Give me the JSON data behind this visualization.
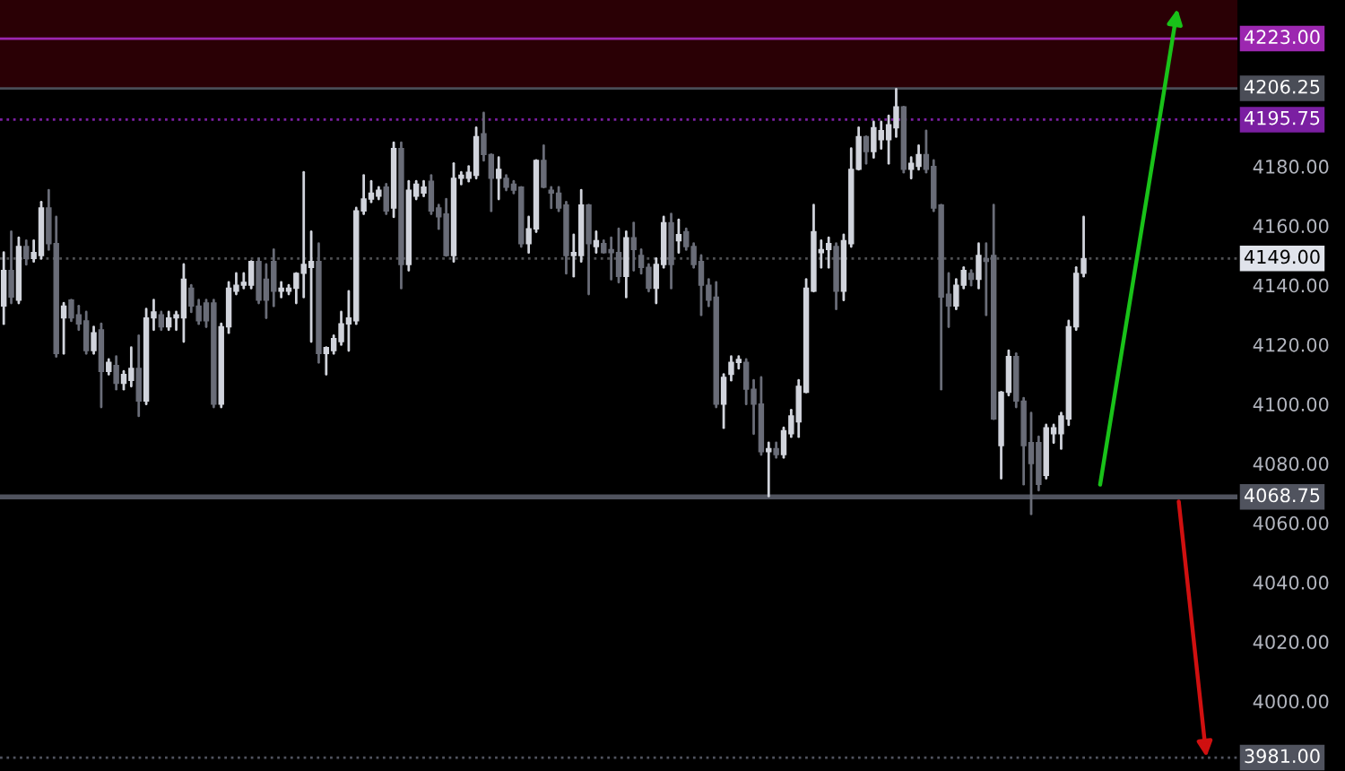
{
  "chart_data": {
    "type": "candlestick",
    "categories": [
      null,
      null,
      null,
      null,
      null,
      null,
      null,
      null,
      null,
      null,
      null,
      null,
      null,
      null,
      null,
      null,
      null,
      null,
      null,
      null,
      null,
      null,
      null,
      null,
      null,
      null,
      null,
      null,
      null,
      null,
      null,
      null,
      null,
      null,
      null,
      null,
      null,
      null,
      null,
      null,
      null,
      null,
      null,
      null,
      null,
      null,
      null,
      null,
      null,
      null,
      null,
      null,
      null,
      null,
      null,
      null,
      null,
      null,
      null,
      null,
      null,
      null,
      null,
      null,
      null,
      null,
      null,
      null,
      null,
      null,
      null,
      null,
      null,
      null,
      null,
      null,
      null,
      null,
      null,
      null,
      null,
      null,
      null,
      null,
      null,
      null,
      null,
      null,
      null,
      null,
      null,
      null,
      null,
      null,
      null,
      null,
      null,
      null,
      null,
      null,
      null,
      null,
      null,
      null,
      null,
      null,
      null,
      null,
      null,
      null,
      null,
      null,
      null,
      null,
      null,
      null,
      null,
      null,
      null,
      null,
      null,
      null,
      null,
      null,
      null,
      null,
      null,
      null,
      null,
      null,
      null,
      null,
      null,
      null,
      null,
      null,
      null,
      null,
      null,
      null,
      null,
      null,
      null,
      null,
      null,
      null,
      null,
      null,
      null,
      null,
      null,
      null,
      null,
      null,
      null,
      null,
      null,
      null,
      null,
      null,
      null,
      null,
      null,
      null,
      null
    ],
    "ohlc": [
      [
        4133,
        4151,
        4127,
        4145
      ],
      [
        4145,
        4158,
        4134,
        4136
      ],
      [
        4135,
        4156,
        4134,
        4153
      ],
      [
        4153,
        4155,
        4147,
        4149
      ],
      [
        4149,
        4155,
        4148,
        4151
      ],
      [
        4150,
        4168,
        4149,
        4166
      ],
      [
        4166,
        4172,
        4152,
        4154
      ],
      [
        4154,
        4163,
        4116,
        4117
      ],
      [
        4129,
        4134,
        4117,
        4133
      ],
      [
        4135,
        4135,
        4128,
        4129
      ],
      [
        4130,
        4133,
        4125,
        4127
      ],
      [
        4128,
        4131,
        4117,
        4118
      ],
      [
        4118,
        4126,
        4117,
        4124
      ],
      [
        4125,
        4127,
        4099,
        4111
      ],
      [
        4111,
        4115,
        4110,
        4114
      ],
      [
        4113,
        4116,
        4105,
        4107
      ],
      [
        4107,
        4111,
        4105,
        4110
      ],
      [
        4108,
        4119,
        4106,
        4112
      ],
      [
        4112,
        4123,
        4096,
        4101
      ],
      [
        4101,
        4132,
        4100,
        4129
      ],
      [
        4129,
        4135,
        4125,
        4131
      ],
      [
        4130,
        4131,
        4125,
        4126
      ],
      [
        4126,
        4131,
        4125,
        4129
      ],
      [
        4129,
        4131,
        4125,
        4130
      ],
      [
        4129,
        4147,
        4121,
        4142
      ],
      [
        4139,
        4140,
        4131,
        4133
      ],
      [
        4133,
        4135,
        4127,
        4128
      ],
      [
        4134,
        4135,
        4126,
        4128
      ],
      [
        4134,
        4135,
        4099,
        4100
      ],
      [
        4100,
        4127,
        4099,
        4126
      ],
      [
        4126,
        4141,
        4124,
        4139
      ],
      [
        4138,
        4144,
        4137,
        4140
      ],
      [
        4140,
        4144,
        4139,
        4141
      ],
      [
        4140,
        4148,
        4139,
        4148
      ],
      [
        4148,
        4149,
        4134,
        4135
      ],
      [
        4142,
        4147,
        4129,
        4135
      ],
      [
        4148,
        4152,
        4133,
        4138
      ],
      [
        4138,
        4141,
        4136,
        4139
      ],
      [
        4138,
        4140,
        4137,
        4139
      ],
      [
        4139,
        4144,
        4134,
        4144
      ],
      [
        4144,
        4178,
        4136,
        4147
      ],
      [
        4146,
        4158,
        4121,
        4148
      ],
      [
        4148,
        4154,
        4114,
        4117
      ],
      [
        4117,
        4119,
        4110,
        4119
      ],
      [
        4118,
        4123,
        4117,
        4122
      ],
      [
        4121,
        4131,
        4120,
        4127
      ],
      [
        4127,
        4138,
        4118,
        4129
      ],
      [
        4128,
        4166,
        4127,
        4165
      ],
      [
        4165,
        4177,
        4164,
        4169
      ],
      [
        4169,
        4175,
        4168,
        4171
      ],
      [
        4170,
        4173,
        4169,
        4172
      ],
      [
        4173,
        4174,
        4164,
        4165
      ],
      [
        4166,
        4188,
        4163,
        4186
      ],
      [
        4186,
        4188,
        4139,
        4147
      ],
      [
        4147,
        4175,
        4145,
        4172
      ],
      [
        4170,
        4175,
        4169,
        4174
      ],
      [
        4171,
        4175,
        4170,
        4173
      ],
      [
        4175,
        4177,
        4164,
        4165
      ],
      [
        4166,
        4167,
        4159,
        4163
      ],
      [
        4164,
        4169,
        4150,
        4150
      ],
      [
        4150,
        4181,
        4148,
        4176
      ],
      [
        4176,
        4178,
        4174,
        4177
      ],
      [
        4176,
        4180,
        4175,
        4178
      ],
      [
        4177,
        4193,
        4176,
        4190
      ],
      [
        4191,
        4198,
        4182,
        4184
      ],
      [
        4184,
        4184,
        4165,
        4176
      ],
      [
        4176,
        4183,
        4169,
        4179
      ],
      [
        4176,
        4177,
        4172,
        4173
      ],
      [
        4174,
        4175,
        4171,
        4172
      ],
      [
        4173,
        4173,
        4153,
        4154
      ],
      [
        4154,
        4163,
        4151,
        4159
      ],
      [
        4159,
        4182,
        4158,
        4182
      ],
      [
        4182,
        4187,
        4173,
        4173
      ],
      [
        4172,
        4173,
        4166,
        4171
      ],
      [
        4171,
        4173,
        4165,
        4166
      ],
      [
        4167,
        4168,
        4144,
        4150
      ],
      [
        4150,
        4157,
        4143,
        4151
      ],
      [
        4150,
        4172,
        4148,
        4167
      ],
      [
        4167,
        4167,
        4137,
        4154
      ],
      [
        4153,
        4158,
        4151,
        4155
      ],
      [
        4154,
        4155,
        4151,
        4151
      ],
      [
        4152,
        4156,
        4142,
        4151
      ],
      [
        4151,
        4159,
        4141,
        4143
      ],
      [
        4143,
        4158,
        4136,
        4156
      ],
      [
        4156,
        4161,
        4145,
        4152
      ],
      [
        4150,
        4152,
        4144,
        4146
      ],
      [
        4146,
        4147,
        4138,
        4139
      ],
      [
        4139,
        4149,
        4134,
        4147
      ],
      [
        4147,
        4163,
        4146,
        4161
      ],
      [
        4161,
        4164,
        4139,
        4147
      ],
      [
        4155,
        4162,
        4151,
        4157
      ],
      [
        4158,
        4159,
        4152,
        4153
      ],
      [
        4153,
        4154,
        4146,
        4147
      ],
      [
        4148,
        4150,
        4130,
        4140
      ],
      [
        4140,
        4142,
        4133,
        4135
      ],
      [
        4136,
        4141,
        4099,
        4100
      ],
      [
        4100,
        4110,
        4092,
        4109
      ],
      [
        4110,
        4116,
        4108,
        4114
      ],
      [
        4114,
        4116,
        4112,
        4115
      ],
      [
        4114,
        4115,
        4100,
        4105
      ],
      [
        4105,
        4108,
        4090,
        4100
      ],
      [
        4100,
        4109,
        4083,
        4084
      ],
      [
        4084,
        4087,
        4069,
        4085
      ],
      [
        4085,
        4087,
        4082,
        4083
      ],
      [
        4083,
        4092,
        4082,
        4091
      ],
      [
        4090,
        4098,
        4089,
        4096
      ],
      [
        4094,
        4108,
        4089,
        4106
      ],
      [
        4104,
        4142,
        4104,
        4139
      ],
      [
        4138,
        4167,
        4138,
        4158
      ],
      [
        4151,
        4155,
        4146,
        4152
      ],
      [
        4152,
        4156,
        4146,
        4154
      ],
      [
        4153,
        4154,
        4132,
        4138
      ],
      [
        4138,
        4157,
        4135,
        4155
      ],
      [
        4154,
        4186,
        4153,
        4179
      ],
      [
        4179,
        4193,
        4179,
        4190
      ],
      [
        4190,
        4190,
        4181,
        4185
      ],
      [
        4185,
        4195,
        4183,
        4193
      ],
      [
        4189,
        4195,
        4186,
        4192
      ],
      [
        4189,
        4197,
        4181,
        4194
      ],
      [
        4193,
        4206,
        4190,
        4200
      ],
      [
        4200,
        4200,
        4178,
        4179
      ],
      [
        4179,
        4183,
        4176,
        4181
      ],
      [
        4180,
        4187,
        4179,
        4184
      ],
      [
        4184,
        4192,
        4178,
        4179
      ],
      [
        4180,
        4182,
        4165,
        4166
      ],
      [
        4167,
        4167,
        4105,
        4136
      ],
      [
        4137,
        4144,
        4126,
        4133
      ],
      [
        4133,
        4142,
        4132,
        4140
      ],
      [
        4140,
        4146,
        4139,
        4145
      ],
      [
        4144,
        4145,
        4140,
        4142
      ],
      [
        4142,
        4154,
        4139,
        4150
      ],
      [
        4149,
        4154,
        4130,
        4148
      ],
      [
        4150,
        4167,
        4095,
        4095
      ],
      [
        4086,
        4104,
        4075,
        4104
      ],
      [
        4104,
        4118,
        4103,
        4116
      ],
      [
        4116,
        4117,
        4099,
        4101
      ],
      [
        4101,
        4102,
        4073,
        4086
      ],
      [
        4087,
        4097,
        4063,
        4080
      ],
      [
        4087,
        4089,
        4071,
        4073
      ],
      [
        4076,
        4093,
        4075,
        4092
      ],
      [
        4090,
        4093,
        4087,
        4092
      ],
      [
        4090,
        4097,
        4085,
        4096
      ],
      [
        4095,
        4128,
        4093,
        4126
      ],
      [
        4126,
        4146,
        4125,
        4144
      ],
      [
        4144,
        4163,
        4143,
        4149
      ],
      null,
      null,
      null,
      null,
      null,
      null,
      null,
      null,
      null,
      null,
      null,
      null,
      null,
      null,
      null,
      null,
      null,
      null,
      null,
      null
    ],
    "colors": [
      "#d1d4dc",
      "#6a6d78",
      "#d1d4dc",
      "#6a6d78",
      "#d1d4dc",
      "#d1d4dc",
      "#6a6d78",
      "#6a6d78",
      "#d1d4dc",
      "#6a6d78",
      "#6a6d78",
      "#6a6d78",
      "#d1d4dc",
      "#6a6d78",
      "#d1d4dc",
      "#6a6d78",
      "#d1d4dc",
      "#d1d4dc",
      "#6a6d78",
      "#d1d4dc",
      "#d1d4dc",
      "#6a6d78",
      "#d1d4dc",
      "#d1d4dc",
      "#d1d4dc",
      "#6a6d78",
      "#6a6d78",
      "#6a6d78",
      "#6a6d78",
      "#d1d4dc",
      "#d1d4dc",
      "#d1d4dc",
      "#d1d4dc",
      "#d1d4dc",
      "#6a6d78",
      "#6a6d78",
      "#6a6d78",
      "#d1d4dc",
      "#d1d4dc",
      "#d1d4dc",
      "#d1d4dc",
      "#d1d4dc",
      "#6a6d78",
      "#d1d4dc",
      "#d1d4dc",
      "#d1d4dc",
      "#d1d4dc",
      "#d1d4dc",
      "#d1d4dc",
      "#d1d4dc",
      "#d1d4dc",
      "#6a6d78",
      "#d1d4dc",
      "#6a6d78",
      "#d1d4dc",
      "#d1d4dc",
      "#d1d4dc",
      "#6a6d78",
      "#6a6d78",
      "#6a6d78",
      "#d1d4dc",
      "#d1d4dc",
      "#d1d4dc",
      "#d1d4dc",
      "#6a6d78",
      "#6a6d78",
      "#d1d4dc",
      "#6a6d78",
      "#6a6d78",
      "#6a6d78",
      "#d1d4dc",
      "#d1d4dc",
      "#6a6d78",
      "#6a6d78",
      "#6a6d78",
      "#6a6d78",
      "#d1d4dc",
      "#d1d4dc",
      "#6a6d78",
      "#d1d4dc",
      "#6a6d78",
      "#6a6d78",
      "#6a6d78",
      "#d1d4dc",
      "#6a6d78",
      "#6a6d78",
      "#6a6d78",
      "#d1d4dc",
      "#d1d4dc",
      "#6a6d78",
      "#d1d4dc",
      "#6a6d78",
      "#6a6d78",
      "#6a6d78",
      "#6a6d78",
      "#6a6d78",
      "#d1d4dc",
      "#d1d4dc",
      "#d1d4dc",
      "#6a6d78",
      "#6a6d78",
      "#6a6d78",
      "#d1d4dc",
      "#6a6d78",
      "#d1d4dc",
      "#d1d4dc",
      "#d1d4dc",
      "#d1d4dc",
      "#d1d4dc",
      "#d1d4dc",
      "#d1d4dc",
      "#6a6d78",
      "#d1d4dc",
      "#d1d4dc",
      "#d1d4dc",
      "#6a6d78",
      "#d1d4dc",
      "#d1d4dc",
      "#d1d4dc",
      "#d1d4dc",
      "#6a6d78",
      "#d1d4dc",
      "#d1d4dc",
      "#6a6d78",
      "#6a6d78",
      "#6a6d78",
      "#6a6d78",
      "#d1d4dc",
      "#d1d4dc",
      "#6a6d78",
      "#d1d4dc",
      "#6a6d78",
      "#6a6d78",
      "#d1d4dc",
      "#d1d4dc",
      "#6a6d78",
      "#6a6d78",
      "#6a6d78",
      "#6a6d78",
      "#d1d4dc",
      "#d1d4dc",
      "#d1d4dc",
      "#d1d4dc",
      "#d1d4dc",
      "#d1d4dc",
      null,
      null,
      null,
      null,
      null,
      null,
      null,
      null,
      null,
      null,
      null,
      null,
      null,
      null,
      null,
      null,
      null,
      null,
      null,
      null
    ],
    "ylim": [
      3976.5,
      4236
    ],
    "yticks": [
      {
        "value": 4000,
        "label": "4000.00"
      },
      {
        "value": 4020,
        "label": "4020.00"
      },
      {
        "value": 4040,
        "label": "4040.00"
      },
      {
        "value": 4060,
        "label": "4060.00"
      },
      {
        "value": 4080,
        "label": "4080.00"
      },
      {
        "value": 4100,
        "label": "4100.00"
      },
      {
        "value": 4120,
        "label": "4120.00"
      },
      {
        "value": 4140,
        "label": "4140.00"
      },
      {
        "value": 4160,
        "label": "4160.00"
      },
      {
        "value": 4180,
        "label": "4180.00"
      }
    ],
    "tick_labels": "y",
    "grid": false,
    "ref_lines": [
      {
        "axis": "y",
        "value": 4223,
        "label": "4223.00",
        "color": "#9c27b0",
        "line_style": "solid"
      },
      {
        "axis": "y",
        "value": 4206.25,
        "label": "4206.25",
        "color": "#4a4d57",
        "line_style": "solid"
      },
      {
        "axis": "y",
        "value": 4195.75,
        "label": "4195.75",
        "color": "#7b1fa2",
        "line_style": "dotted"
      },
      {
        "axis": "y",
        "value": 4149,
        "label": "4149.00",
        "color": "#e0e3eb",
        "line_style": "dotted"
      },
      {
        "axis": "y",
        "value": 4068.75,
        "label": "4068.75",
        "color": "#50535e",
        "line_style": "solid"
      },
      {
        "axis": "y",
        "value": 3981,
        "label": "3981.00",
        "color": "#50535e",
        "line_style": "dotted"
      }
    ],
    "bands": [
      {
        "axis": "y",
        "from": 4206.25,
        "to": 4236,
        "color": "#2a0005"
      }
    ]
  }
}
